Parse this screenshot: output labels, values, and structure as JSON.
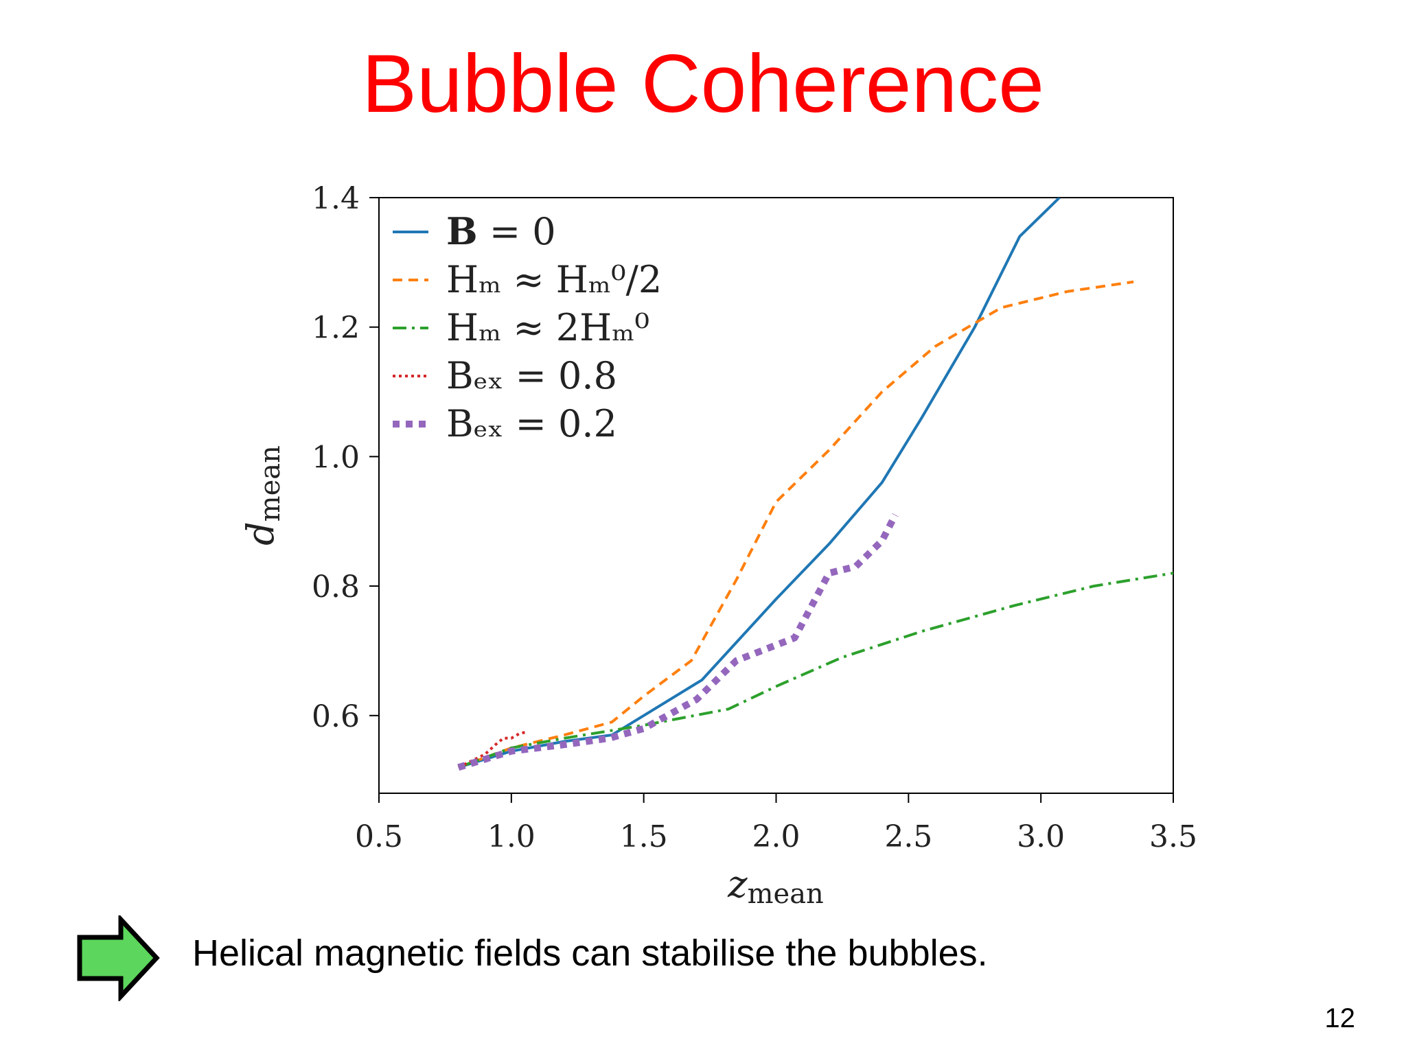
{
  "slide": {
    "title": "Bubble Coherence",
    "conclusion": "Helical magnetic fields can stabilise the bubbles.",
    "page_number": "12",
    "arrow_icon": "right-arrow-icon",
    "arrow_color": "#5cd65c"
  },
  "chart_data": {
    "type": "line",
    "xlabel": {
      "main": "z",
      "sub": "mean"
    },
    "ylabel": {
      "main": "d",
      "sub": "mean"
    },
    "xlim": [
      0.5,
      3.5
    ],
    "ylim": [
      0.48,
      1.4
    ],
    "xticks": [
      "0.5",
      "1.0",
      "1.5",
      "2.0",
      "2.5",
      "3.0",
      "3.5"
    ],
    "yticks": [
      "0.6",
      "0.8",
      "1.0",
      "1.2",
      "1.4"
    ],
    "grid": false,
    "legend_position": "top-left",
    "series": [
      {
        "legend": {
          "pre": "",
          "bold": "B",
          "post": " = 0"
        },
        "color": "#1f77b4",
        "style": "solid",
        "x": [
          0.8,
          1.0,
          1.2,
          1.38,
          1.5,
          1.72,
          2.0,
          2.2,
          2.4,
          2.55,
          2.75,
          2.92,
          3.07
        ],
        "y": [
          0.52,
          0.545,
          0.56,
          0.57,
          0.6,
          0.655,
          0.78,
          0.865,
          0.96,
          1.06,
          1.2,
          1.34,
          1.4
        ]
      },
      {
        "legend": {
          "pre": "Hₘ ≈ Hₘ⁰/2",
          "bold": "",
          "post": ""
        },
        "color": "#ff7f0e",
        "style": "dashed",
        "x": [
          0.8,
          1.0,
          1.2,
          1.38,
          1.5,
          1.68,
          1.85,
          2.0,
          2.2,
          2.4,
          2.6,
          2.85,
          3.1,
          3.35
        ],
        "y": [
          0.52,
          0.55,
          0.57,
          0.59,
          0.63,
          0.685,
          0.81,
          0.93,
          1.01,
          1.1,
          1.17,
          1.23,
          1.255,
          1.27
        ]
      },
      {
        "legend": {
          "pre": "Hₘ ≈ 2Hₘ⁰",
          "bold": "",
          "post": ""
        },
        "color": "#2ca02c",
        "style": "dashdot",
        "x": [
          0.8,
          1.0,
          1.2,
          1.5,
          1.82,
          2.0,
          2.25,
          2.55,
          2.9,
          3.2,
          3.5
        ],
        "y": [
          0.52,
          0.55,
          0.565,
          0.585,
          0.61,
          0.645,
          0.69,
          0.73,
          0.77,
          0.8,
          0.82
        ]
      },
      {
        "legend": {
          "pre": "Bₑₓ = 0.8",
          "bold": "",
          "post": ""
        },
        "color": "#d62728",
        "style": "dotted",
        "x": [
          0.8,
          0.85,
          0.9,
          0.94,
          0.97,
          1.0,
          1.03,
          1.06
        ],
        "y": [
          0.52,
          0.53,
          0.54,
          0.555,
          0.565,
          0.565,
          0.572,
          0.575
        ]
      },
      {
        "legend": {
          "pre": "Bₑₓ = 0.2",
          "bold": "",
          "post": ""
        },
        "color": "#9467bd",
        "style": "thickdot",
        "x": [
          0.8,
          1.0,
          1.2,
          1.37,
          1.5,
          1.7,
          1.85,
          2.07,
          2.2,
          2.3,
          2.4,
          2.45
        ],
        "y": [
          0.52,
          0.545,
          0.555,
          0.565,
          0.58,
          0.625,
          0.685,
          0.72,
          0.82,
          0.83,
          0.87,
          0.91
        ]
      }
    ]
  }
}
